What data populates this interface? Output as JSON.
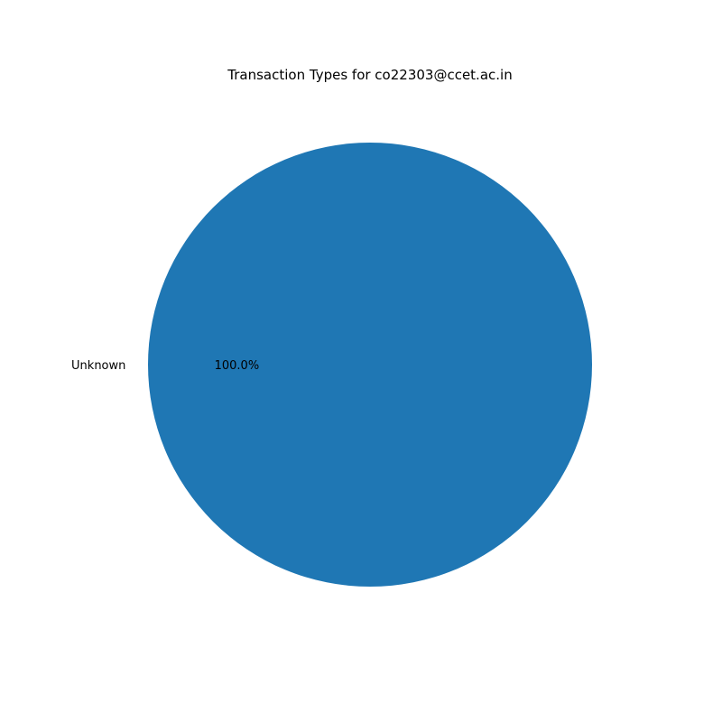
{
  "chart_data": {
    "type": "pie",
    "title": "Transaction Types for co22303@ccet.ac.in",
    "slices": [
      {
        "label": "Unknown",
        "value": 100.0,
        "pct_label": "100.0%",
        "color": "#1f77b4"
      }
    ]
  }
}
